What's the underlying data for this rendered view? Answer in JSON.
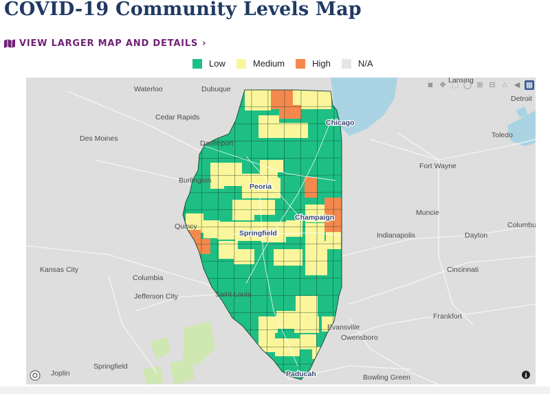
{
  "page": {
    "title": "COVID-19 Community Levels Map",
    "view_link": "VIEW LARGER MAP AND DETAILS"
  },
  "legend": [
    {
      "label": "Low",
      "color": "#1dbf84"
    },
    {
      "label": "Medium",
      "color": "#fbf69b"
    },
    {
      "label": "High",
      "color": "#f5894d"
    },
    {
      "label": "N/A",
      "color": "#e6e6e6"
    }
  ],
  "map": {
    "base_color": "#dedede",
    "water_color": "#a9d3e3",
    "park_color": "#cfe7b0",
    "state": "Illinois",
    "places": [
      {
        "name": "Waterloo",
        "bold": false
      },
      {
        "name": "Dubuque",
        "bold": false
      },
      {
        "name": "Cedar Rapids",
        "bold": false
      },
      {
        "name": "Des Moines",
        "bold": false
      },
      {
        "name": "Davenport",
        "bold": false
      },
      {
        "name": "Burlington",
        "bold": false
      },
      {
        "name": "Peoria",
        "bold": true
      },
      {
        "name": "Quincy",
        "bold": false
      },
      {
        "name": "Springfield",
        "bold": true
      },
      {
        "name": "Champaign",
        "bold": true
      },
      {
        "name": "Chicago",
        "bold": true
      },
      {
        "name": "Kansas City",
        "bold": false
      },
      {
        "name": "Columbia",
        "bold": false
      },
      {
        "name": "Jefferson City",
        "bold": false
      },
      {
        "name": "Saint Louis",
        "bold": false
      },
      {
        "name": "Springfield",
        "bold": false
      },
      {
        "name": "Joplin",
        "bold": false
      },
      {
        "name": "Evansville",
        "bold": false
      },
      {
        "name": "Owensboro",
        "bold": false
      },
      {
        "name": "Paducah",
        "bold": true
      },
      {
        "name": "Bowling Green",
        "bold": false
      },
      {
        "name": "Detroit",
        "bold": false
      },
      {
        "name": "Toledo",
        "bold": false
      },
      {
        "name": "Fort Wayne",
        "bold": false
      },
      {
        "name": "Muncie",
        "bold": false
      },
      {
        "name": "Indianapolis",
        "bold": false
      },
      {
        "name": "Dayton",
        "bold": false
      },
      {
        "name": "Columbu",
        "bold": false
      },
      {
        "name": "Cincinnati",
        "bold": false
      },
      {
        "name": "Frankfort",
        "bold": false
      },
      {
        "name": "Lansing",
        "bold": false
      }
    ]
  },
  "toolbar": [
    "camera-icon",
    "pan-icon",
    "box-select-icon",
    "lasso-icon",
    "zoom-in-icon",
    "zoom-out-icon",
    "home-icon",
    "pin-icon",
    "plotly-logo-icon"
  ],
  "info_icon": "i"
}
